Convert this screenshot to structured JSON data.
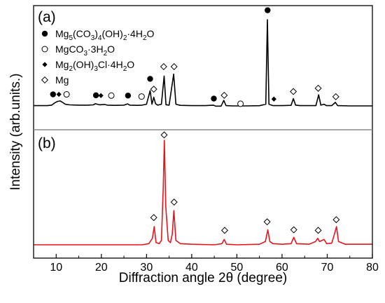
{
  "chart_data": {
    "type": "line",
    "xlabel": "Diffraction angle 2θ (degree)",
    "ylabel": "Intensity (arb.units.)",
    "xlim": [
      5,
      80
    ],
    "xticks": [
      10,
      20,
      30,
      40,
      50,
      60,
      70,
      80
    ],
    "panels": [
      {
        "label": "(a)",
        "color": "#000000",
        "series_points": [
          [
            5,
            0.085
          ],
          [
            8,
            0.085
          ],
          [
            9,
            0.09
          ],
          [
            9.7,
            0.115
          ],
          [
            10.3,
            0.13
          ],
          [
            10.9,
            0.135
          ],
          [
            11.4,
            0.12
          ],
          [
            12,
            0.1
          ],
          [
            13,
            0.093
          ],
          [
            15,
            0.09
          ],
          [
            17,
            0.09
          ],
          [
            18.2,
            0.093
          ],
          [
            18.7,
            0.105
          ],
          [
            19.1,
            0.1
          ],
          [
            19.6,
            0.094
          ],
          [
            20.7,
            0.098
          ],
          [
            21.3,
            0.09
          ],
          [
            23,
            0.088
          ],
          [
            25,
            0.09
          ],
          [
            25.8,
            0.104
          ],
          [
            26.3,
            0.09
          ],
          [
            28,
            0.088
          ],
          [
            29,
            0.09
          ],
          [
            30,
            0.1
          ],
          [
            30.8,
            0.245
          ],
          [
            31.2,
            0.1
          ],
          [
            31.6,
            0.175
          ],
          [
            32,
            0.105
          ],
          [
            32.5,
            0.09
          ],
          [
            33.3,
            0.1
          ],
          [
            33.9,
            0.4
          ],
          [
            34.3,
            0.095
          ],
          [
            35,
            0.09
          ],
          [
            36,
            0.42
          ],
          [
            36.5,
            0.1
          ],
          [
            37.5,
            0.088
          ],
          [
            40,
            0.085
          ],
          [
            43,
            0.085
          ],
          [
            44.8,
            0.09
          ],
          [
            45.3,
            0.08
          ],
          [
            46.5,
            0.08
          ],
          [
            47.1,
            0.14
          ],
          [
            47.6,
            0.085
          ],
          [
            49,
            0.082
          ],
          [
            52,
            0.082
          ],
          [
            55,
            0.084
          ],
          [
            56.4,
            0.1
          ],
          [
            56.75,
            1.0
          ],
          [
            57.1,
            0.1
          ],
          [
            58,
            0.085
          ],
          [
            60,
            0.085
          ],
          [
            62,
            0.088
          ],
          [
            62.5,
            0.16
          ],
          [
            63,
            0.09
          ],
          [
            64,
            0.085
          ],
          [
            66,
            0.085
          ],
          [
            67.5,
            0.085
          ],
          [
            68.1,
            0.2
          ],
          [
            68.6,
            0.09
          ],
          [
            69.3,
            0.1
          ],
          [
            69.8,
            0.085
          ],
          [
            71,
            0.085
          ],
          [
            71.8,
            0.12
          ],
          [
            72.3,
            0.085
          ],
          [
            75,
            0.082
          ],
          [
            80,
            0.082
          ]
        ],
        "markers": [
          {
            "symbol": "filled-circle",
            "x": 9.3,
            "y": 0.205
          },
          {
            "symbol": "filled-diamond",
            "x": 10.6,
            "y": 0.205
          },
          {
            "symbol": "open-circle",
            "x": 12.3,
            "y": 0.205
          },
          {
            "symbol": "filled-circle",
            "x": 18.8,
            "y": 0.195
          },
          {
            "symbol": "filled-diamond",
            "x": 19.9,
            "y": 0.192
          },
          {
            "symbol": "open-circle",
            "x": 22.2,
            "y": 0.192
          },
          {
            "symbol": "filled-circle",
            "x": 25.9,
            "y": 0.192
          },
          {
            "symbol": "open-circle",
            "x": 28.9,
            "y": 0.182
          },
          {
            "symbol": "filled-circle",
            "x": 30.8,
            "y": 0.37
          },
          {
            "symbol": "open-diamond",
            "x": 31.6,
            "y": 0.26
          },
          {
            "symbol": "open-diamond",
            "x": 33.8,
            "y": 0.5
          },
          {
            "symbol": "open-diamond",
            "x": 36.1,
            "y": 0.5
          },
          {
            "symbol": "filled-circle",
            "x": 44.9,
            "y": 0.16
          },
          {
            "symbol": "open-diamond",
            "x": 47.2,
            "y": 0.195
          },
          {
            "symbol": "open-circle",
            "x": 50.8,
            "y": 0.105
          },
          {
            "symbol": "filled-circle",
            "x": 56.8,
            "y": 1.1
          },
          {
            "symbol": "filled-diamond",
            "x": 58.2,
            "y": 0.155
          },
          {
            "symbol": "open-diamond",
            "x": 62.5,
            "y": 0.235
          },
          {
            "symbol": "open-diamond",
            "x": 68.0,
            "y": 0.27
          },
          {
            "symbol": "open-diamond",
            "x": 71.9,
            "y": 0.18
          }
        ]
      },
      {
        "label": "(b)",
        "color": "#e8141b",
        "series_points": [
          [
            5,
            0.02
          ],
          [
            10,
            0.02
          ],
          [
            15,
            0.02
          ],
          [
            20,
            0.02
          ],
          [
            25,
            0.02
          ],
          [
            29,
            0.02
          ],
          [
            30.5,
            0.03
          ],
          [
            31.3,
            0.08
          ],
          [
            31.7,
            0.19
          ],
          [
            32.1,
            0.04
          ],
          [
            32.8,
            0.03
          ],
          [
            33.3,
            0.06
          ],
          [
            33.7,
            0.55
          ],
          [
            33.95,
            1.0
          ],
          [
            34.25,
            0.38
          ],
          [
            34.8,
            0.06
          ],
          [
            35.3,
            0.04
          ],
          [
            35.7,
            0.12
          ],
          [
            36.05,
            0.34
          ],
          [
            36.5,
            0.06
          ],
          [
            37.5,
            0.03
          ],
          [
            40,
            0.025
          ],
          [
            45,
            0.02
          ],
          [
            46.7,
            0.03
          ],
          [
            47.2,
            0.07
          ],
          [
            47.7,
            0.025
          ],
          [
            50,
            0.02
          ],
          [
            55,
            0.025
          ],
          [
            56.3,
            0.05
          ],
          [
            56.85,
            0.16
          ],
          [
            57.3,
            0.05
          ],
          [
            58,
            0.03
          ],
          [
            60,
            0.025
          ],
          [
            62,
            0.03
          ],
          [
            62.6,
            0.09
          ],
          [
            63.2,
            0.03
          ],
          [
            66,
            0.025
          ],
          [
            67.4,
            0.05
          ],
          [
            67.9,
            0.08
          ],
          [
            68.3,
            0.05
          ],
          [
            69.3,
            0.07
          ],
          [
            69.9,
            0.03
          ],
          [
            71,
            0.035
          ],
          [
            71.6,
            0.12
          ],
          [
            72.05,
            0.19
          ],
          [
            72.5,
            0.05
          ],
          [
            74,
            0.025
          ],
          [
            80,
            0.025
          ]
        ],
        "markers": [
          {
            "symbol": "open-diamond",
            "x": 31.6,
            "y": 0.275
          },
          {
            "symbol": "open-diamond",
            "x": 33.9,
            "y": 1.05
          },
          {
            "symbol": "open-diamond",
            "x": 36.1,
            "y": 0.42
          },
          {
            "symbol": "open-diamond",
            "x": 47.3,
            "y": 0.155
          },
          {
            "symbol": "open-diamond",
            "x": 56.7,
            "y": 0.235
          },
          {
            "symbol": "open-diamond",
            "x": 62.6,
            "y": 0.16
          },
          {
            "symbol": "open-diamond",
            "x": 68.0,
            "y": 0.155
          },
          {
            "symbol": "open-diamond",
            "x": 72.0,
            "y": 0.255
          }
        ]
      }
    ],
    "legend": {
      "placement": "top-left",
      "entries": [
        {
          "symbol": "filled-circle",
          "parts": [
            [
              "n",
              "Mg"
            ],
            [
              "s",
              "5"
            ],
            [
              "n",
              "(CO"
            ],
            [
              "s",
              "3"
            ],
            [
              "n",
              ")"
            ],
            [
              "s",
              "4"
            ],
            [
              "n",
              "(OH)"
            ],
            [
              "s",
              "2"
            ],
            [
              "n",
              "·4H"
            ],
            [
              "s",
              "2"
            ],
            [
              "n",
              "O"
            ]
          ]
        },
        {
          "symbol": "open-circle",
          "parts": [
            [
              "n",
              "MgCO"
            ],
            [
              "s",
              "3"
            ],
            [
              "n",
              "·3H"
            ],
            [
              "s",
              "2"
            ],
            [
              "n",
              "O"
            ]
          ]
        },
        {
          "symbol": "filled-diamond",
          "parts": [
            [
              "n",
              "Mg"
            ],
            [
              "s",
              "2"
            ],
            [
              "n",
              "(OH)"
            ],
            [
              "s",
              "3"
            ],
            [
              "n",
              "Cl·4H"
            ],
            [
              "s",
              "2"
            ],
            [
              "n",
              "O"
            ]
          ]
        },
        {
          "symbol": "open-diamond",
          "parts": [
            [
              "n",
              "Mg"
            ]
          ]
        }
      ]
    }
  }
}
